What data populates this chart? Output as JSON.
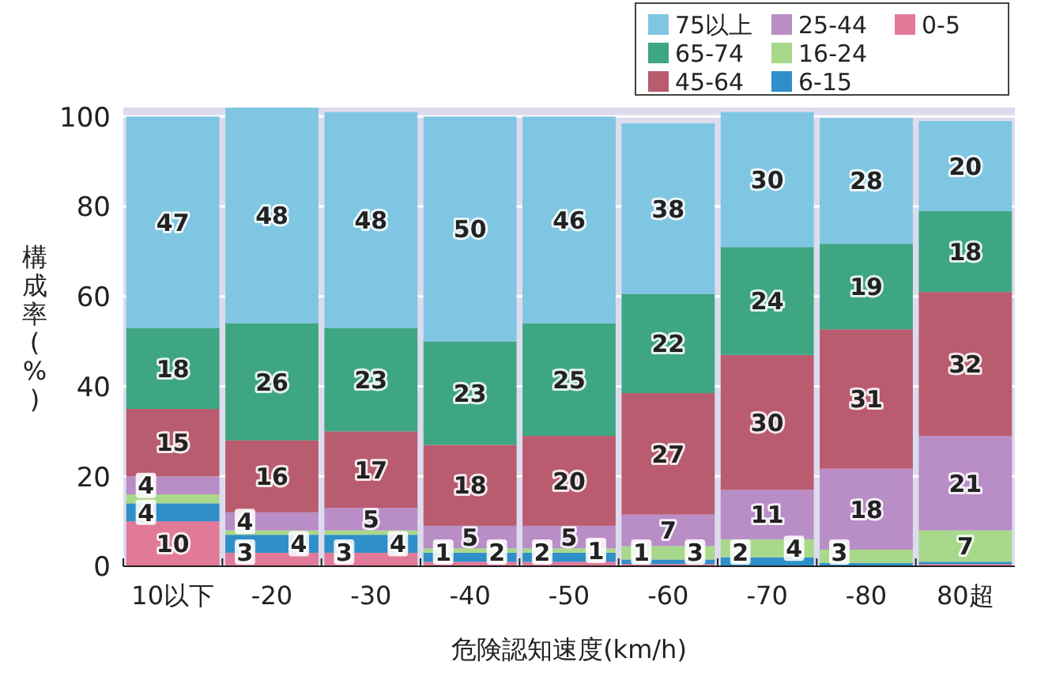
{
  "chart_data": {
    "type": "bar",
    "stacked": true,
    "xlabel": "危険認知速度(km/h)",
    "ylabel": "構成率(%)",
    "categories": [
      "10以下",
      "-20",
      "-30",
      "-40",
      "-50",
      "-60",
      "-70",
      "-80",
      "80超"
    ],
    "ylim": [
      0,
      102
    ],
    "yticks": [
      0,
      20,
      40,
      60,
      80,
      100
    ],
    "grid": "y",
    "legend": "top right",
    "series": [
      {
        "name": "0-5",
        "color": "#e07a98",
        "values": [
          10,
          3,
          3,
          1,
          1,
          0.5,
          null,
          null,
          0.5
        ],
        "value_labels": [
          "10",
          "3",
          "3",
          "1",
          null,
          null,
          null,
          null,
          null
        ]
      },
      {
        "name": "6-15",
        "color": "#2f8fc9",
        "values": [
          4,
          4,
          4,
          2,
          2,
          1,
          2,
          0.7,
          0.5
        ],
        "value_labels": [
          "4",
          "4",
          "4",
          "2",
          "2",
          "1",
          "2",
          null,
          null
        ]
      },
      {
        "name": "16-24",
        "color": "#a8d88a",
        "values": [
          2,
          1,
          1,
          1,
          1,
          3,
          4,
          3,
          7
        ],
        "value_labels": [
          null,
          null,
          null,
          null,
          "1",
          "3",
          "4",
          "3",
          "7"
        ]
      },
      {
        "name": "25-44",
        "color": "#b98dc6",
        "values": [
          4,
          4,
          5,
          5,
          5,
          7,
          11,
          18,
          21
        ],
        "value_labels": [
          "4",
          "4",
          "5",
          "5",
          "5",
          "7",
          "11",
          "18",
          "21"
        ]
      },
      {
        "name": "45-64",
        "color": "#b95c6f",
        "values": [
          15,
          16,
          17,
          18,
          20,
          27,
          30,
          31,
          32
        ],
        "value_labels": [
          "15",
          "16",
          "17",
          "18",
          "20",
          "27",
          "30",
          "31",
          "32"
        ]
      },
      {
        "name": "65-74",
        "color": "#3ea682",
        "values": [
          18,
          26,
          23,
          23,
          25,
          22,
          24,
          19,
          18
        ],
        "value_labels": [
          "18",
          "26",
          "23",
          "23",
          "25",
          "22",
          "24",
          "19",
          "18"
        ]
      },
      {
        "name": "75以上",
        "color": "#7fc6e2",
        "values": [
          47,
          48,
          48,
          50,
          46,
          38,
          30,
          28,
          20
        ],
        "value_labels": [
          "47",
          "48",
          "48",
          "50",
          "46",
          "38",
          "30",
          "28",
          "20"
        ]
      }
    ]
  }
}
